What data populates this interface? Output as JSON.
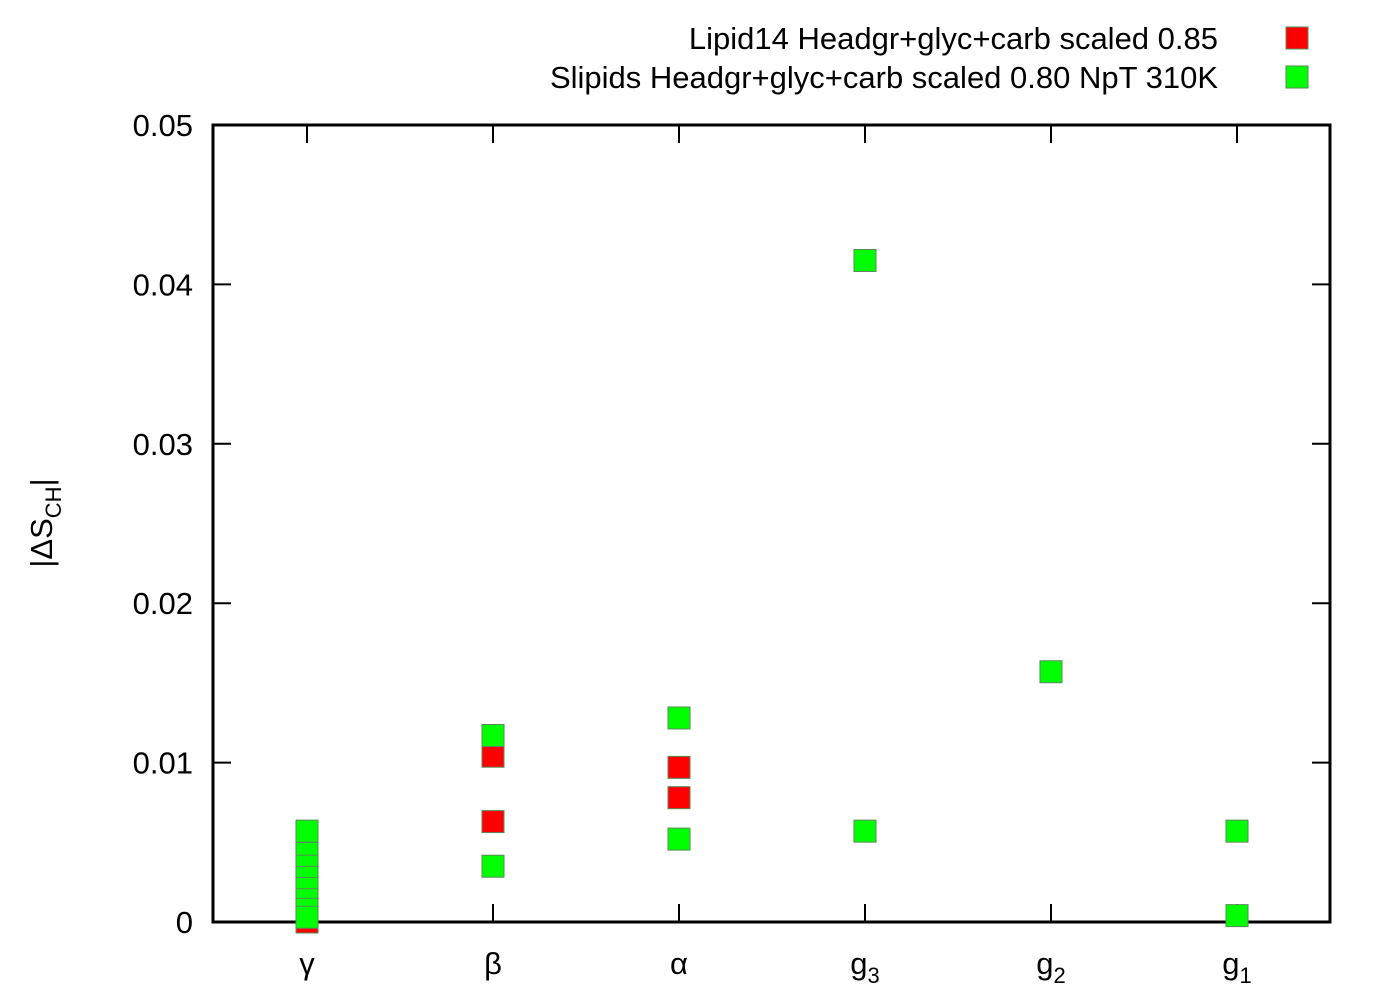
{
  "chart_data": {
    "type": "scatter",
    "title": "",
    "xlabel": "",
    "ylabel": "|ΔS",
    "ylabel_subscript": "CH",
    "ylabel_suffix": "|",
    "ylim": [
      0,
      0.05
    ],
    "yticks": [
      "0",
      "0.01",
      "0.02",
      "0.03",
      "0.04",
      "0.05"
    ],
    "ytick_values": [
      0,
      0.01,
      0.02,
      0.03,
      0.04,
      0.05
    ],
    "categories": [
      {
        "label": "γ",
        "sub": ""
      },
      {
        "label": "β",
        "sub": ""
      },
      {
        "label": "α",
        "sub": ""
      },
      {
        "label": "g",
        "sub": "3"
      },
      {
        "label": "g",
        "sub": "2"
      },
      {
        "label": "g",
        "sub": "1"
      }
    ],
    "legend_position": "top-right",
    "grid": false,
    "series": [
      {
        "name": "Lipid14 Headgr+glyc+carb scaled 0.85",
        "color": "#ff0000",
        "points": [
          {
            "x": "γ",
            "y": 0.0
          },
          {
            "x": "γ",
            "y": 0.0003
          },
          {
            "x": "γ",
            "y": 0.0008
          },
          {
            "x": "β",
            "y": 0.0104
          },
          {
            "x": "β",
            "y": 0.0063
          },
          {
            "x": "α",
            "y": 0.0097
          },
          {
            "x": "α",
            "y": 0.0078
          }
        ]
      },
      {
        "name": "Slipids Headgr+glyc+carb scaled 0.80 NpT 310K",
        "color": "#00ff00",
        "points": [
          {
            "x": "γ",
            "y": 0.0057
          },
          {
            "x": "γ",
            "y": 0.0043
          },
          {
            "x": "γ",
            "y": 0.0035
          },
          {
            "x": "γ",
            "y": 0.0028
          },
          {
            "x": "γ",
            "y": 0.0021
          },
          {
            "x": "γ",
            "y": 0.0014
          },
          {
            "x": "γ",
            "y": 0.0008
          },
          {
            "x": "γ",
            "y": 0.0003
          },
          {
            "x": "β",
            "y": 0.0117
          },
          {
            "x": "β",
            "y": 0.0035
          },
          {
            "x": "α",
            "y": 0.0128
          },
          {
            "x": "α",
            "y": 0.0052
          },
          {
            "x": "g₃",
            "y": 0.0415
          },
          {
            "x": "g₃",
            "y": 0.0057
          },
          {
            "x": "g₂",
            "y": 0.0157
          },
          {
            "x": "g₁",
            "y": 0.0057
          },
          {
            "x": "g₁",
            "y": 0.0004
          }
        ]
      }
    ]
  }
}
